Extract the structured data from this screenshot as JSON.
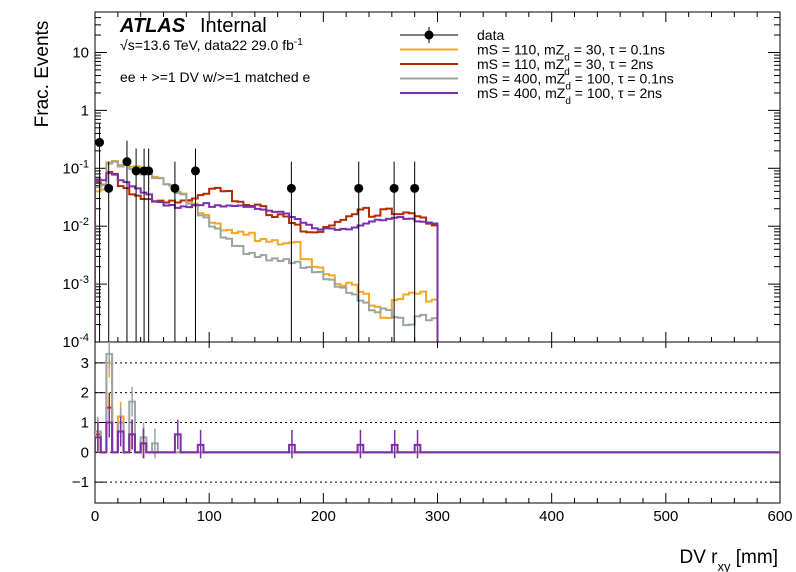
{
  "chart_data": {
    "type": "line",
    "title": "",
    "atlas_label": "ATLAS",
    "atlas_status": "Internal",
    "energy_prefix": "s",
    "energy_text": "=13.6 TeV, data22 29.0 fb",
    "lumi_exp": "-1",
    "selection_text": "ee + >=1 DV w/>=1 matched e",
    "xlabel": "DV r",
    "xlabel_sub": "xy",
    "xlabel_unit": " [mm]",
    "ylabel": "Frac. Events",
    "xlim": [
      0,
      600
    ],
    "ylim": [
      0.0001,
      50
    ],
    "yscale": "log",
    "ratio_ylim": [
      -1.7,
      3.7
    ],
    "x_ticks": [
      0,
      100,
      200,
      300,
      400,
      500,
      600
    ],
    "y_ticks": [
      {
        "value": 10,
        "label": "10"
      },
      {
        "value": 1,
        "label": "1"
      },
      {
        "value": 0.1,
        "label": "10",
        "exp": "-1"
      },
      {
        "value": 0.01,
        "label": "10",
        "exp": "-2"
      },
      {
        "value": 0.001,
        "label": "10",
        "exp": "-3"
      },
      {
        "value": 0.0001,
        "label": "10",
        "exp": "-4"
      }
    ],
    "ratio_ticks": [
      3,
      2,
      1,
      0,
      -1
    ],
    "ratio_gridlines": [
      3,
      2,
      1,
      0,
      -1
    ],
    "legend_position": "top-right",
    "data": {
      "name": "data",
      "x": [
        4,
        12,
        28,
        36,
        43,
        47,
        70,
        88,
        172,
        231,
        262,
        280
      ],
      "y": [
        0.28,
        0.045,
        0.13,
        0.09,
        0.09,
        0.09,
        0.045,
        0.09,
        0.045,
        0.045,
        0.045,
        0.045
      ],
      "err_low_to_floor": true,
      "err_up": [
        0.6,
        0.13,
        0.3,
        0.22,
        0.22,
        0.22,
        0.13,
        0.22,
        0.13,
        0.13,
        0.13,
        0.13
      ]
    },
    "series": [
      {
        "name": "mS = 110, mZ_d = 30, τ = 0.1ns",
        "name_parts": [
          "mS = 110, mZ",
          "d",
          " = 30, τ = 0.1ns"
        ],
        "color": "#f5a623",
        "y_start": 0.03,
        "x_end": 300,
        "points": [
          [
            0,
            0.04
          ],
          [
            10,
            0.11
          ],
          [
            20,
            0.09
          ],
          [
            30,
            0.08
          ],
          [
            40,
            0.065
          ],
          [
            50,
            0.055
          ],
          [
            60,
            0.045
          ],
          [
            70,
            0.038
          ],
          [
            80,
            0.03
          ],
          [
            90,
            0.022
          ],
          [
            100,
            0.017
          ],
          [
            110,
            0.013
          ],
          [
            120,
            0.011
          ],
          [
            130,
            0.009
          ],
          [
            140,
            0.006
          ],
          [
            150,
            0.005
          ],
          [
            160,
            0.004
          ],
          [
            170,
            0.004
          ],
          [
            180,
            0.002
          ],
          [
            190,
            0.0015
          ],
          [
            200,
            0.0012
          ],
          [
            210,
            0.0009
          ],
          [
            220,
            0.0011
          ],
          [
            230,
            0.0009
          ],
          [
            240,
            0.0006
          ],
          [
            250,
            0.0004
          ],
          [
            260,
            0.0008
          ],
          [
            270,
            0.0009
          ],
          [
            280,
            0.0008
          ],
          [
            290,
            0.0005
          ]
        ],
        "ratio": [
          [
            0,
            0.5
          ],
          [
            10,
            3.0
          ],
          [
            20,
            1.2
          ],
          [
            30,
            0.6
          ],
          [
            40,
            0.3
          ],
          [
            50,
            0
          ],
          [
            100,
            0
          ]
        ]
      },
      {
        "name": "mS = 110, mZ_d = 30, τ = 2ns",
        "name_parts": [
          "mS = 110, mZ",
          "d",
          " = 30, τ = 2ns"
        ],
        "color": "#b22b00",
        "y_start": 0.03,
        "x_end": 300,
        "points": [
          [
            0,
            0.05
          ],
          [
            10,
            0.09
          ],
          [
            20,
            0.06
          ],
          [
            30,
            0.05
          ],
          [
            40,
            0.045
          ],
          [
            50,
            0.04
          ],
          [
            60,
            0.035
          ],
          [
            70,
            0.03
          ],
          [
            80,
            0.028
          ],
          [
            90,
            0.03
          ],
          [
            100,
            0.035
          ],
          [
            110,
            0.03
          ],
          [
            120,
            0.02
          ],
          [
            130,
            0.018
          ],
          [
            140,
            0.02
          ],
          [
            150,
            0.015
          ],
          [
            160,
            0.018
          ],
          [
            170,
            0.015
          ],
          [
            180,
            0.012
          ],
          [
            190,
            0.012
          ],
          [
            200,
            0.014
          ],
          [
            210,
            0.015
          ],
          [
            220,
            0.016
          ],
          [
            230,
            0.018
          ],
          [
            240,
            0.012
          ],
          [
            250,
            0.015
          ],
          [
            260,
            0.012
          ],
          [
            270,
            0.013
          ],
          [
            280,
            0.012
          ],
          [
            290,
            0.01
          ]
        ],
        "ratio": [
          [
            0,
            0.6
          ],
          [
            10,
            1.5
          ],
          [
            20,
            1.0
          ],
          [
            30,
            0.6
          ],
          [
            40,
            0.3
          ],
          [
            50,
            0
          ],
          [
            100,
            0
          ]
        ]
      },
      {
        "name": "mS = 400, mZ_d = 100, τ = 0.1ns",
        "name_parts": [
          "mS = 400, mZ",
          "d",
          " = 100, τ = 0.1ns"
        ],
        "color": "#9aa5a5",
        "y_start": 0.03,
        "x_end": 300,
        "points": [
          [
            0,
            0.06
          ],
          [
            10,
            0.13
          ],
          [
            20,
            0.1
          ],
          [
            30,
            0.08
          ],
          [
            40,
            0.06
          ],
          [
            50,
            0.05
          ],
          [
            60,
            0.04
          ],
          [
            70,
            0.03
          ],
          [
            80,
            0.022
          ],
          [
            90,
            0.016
          ],
          [
            100,
            0.012
          ],
          [
            110,
            0.009
          ],
          [
            120,
            0.007
          ],
          [
            130,
            0.005
          ],
          [
            140,
            0.004
          ],
          [
            150,
            0.003
          ],
          [
            160,
            0.0025
          ],
          [
            170,
            0.002
          ],
          [
            180,
            0.0015
          ],
          [
            190,
            0.0012
          ],
          [
            200,
            0.0009
          ],
          [
            210,
            0.0007
          ],
          [
            220,
            0.0006
          ],
          [
            230,
            0.0005
          ],
          [
            240,
            0.0004
          ],
          [
            250,
            0.0005
          ],
          [
            260,
            0.0004
          ],
          [
            270,
            0.0003
          ],
          [
            280,
            0.0004
          ],
          [
            290,
            0.0003
          ]
        ],
        "ratio": [
          [
            0,
            0.7
          ],
          [
            10,
            3.3
          ],
          [
            20,
            1.0
          ],
          [
            30,
            1.7
          ],
          [
            40,
            0.5
          ],
          [
            50,
            0.3
          ],
          [
            60,
            0
          ],
          [
            100,
            0
          ]
        ]
      },
      {
        "name": "mS = 400, mZ_d = 100, τ = 2ns",
        "name_parts": [
          "mS = 400, mZ",
          "d",
          " = 100, τ = 2ns"
        ],
        "color": "#7b2fa8",
        "y_start": 0.03,
        "x_end": 300,
        "points": [
          [
            0,
            0.05
          ],
          [
            10,
            0.07
          ],
          [
            20,
            0.06
          ],
          [
            30,
            0.055
          ],
          [
            40,
            0.05
          ],
          [
            50,
            0.04
          ],
          [
            60,
            0.035
          ],
          [
            70,
            0.03
          ],
          [
            80,
            0.027
          ],
          [
            90,
            0.025
          ],
          [
            100,
            0.02
          ],
          [
            110,
            0.018
          ],
          [
            120,
            0.017
          ],
          [
            130,
            0.016
          ],
          [
            140,
            0.015
          ],
          [
            150,
            0.015
          ],
          [
            160,
            0.016
          ],
          [
            170,
            0.015
          ],
          [
            180,
            0.014
          ],
          [
            190,
            0.013
          ],
          [
            200,
            0.014
          ],
          [
            210,
            0.013
          ],
          [
            220,
            0.012
          ],
          [
            230,
            0.012
          ],
          [
            240,
            0.012
          ],
          [
            250,
            0.011
          ],
          [
            260,
            0.011
          ],
          [
            270,
            0.01
          ],
          [
            280,
            0.009
          ],
          [
            290,
            0.009
          ]
        ],
        "ratio": [
          [
            0,
            0.5
          ],
          [
            10,
            1.0
          ],
          [
            20,
            0.7
          ],
          [
            30,
            0.6
          ],
          [
            40,
            0.3
          ],
          [
            70,
            0.6
          ],
          [
            90,
            0.25
          ],
          [
            170,
            0.25
          ],
          [
            230,
            0.25
          ],
          [
            260,
            0.25
          ],
          [
            280,
            0.25
          ]
        ]
      }
    ]
  }
}
